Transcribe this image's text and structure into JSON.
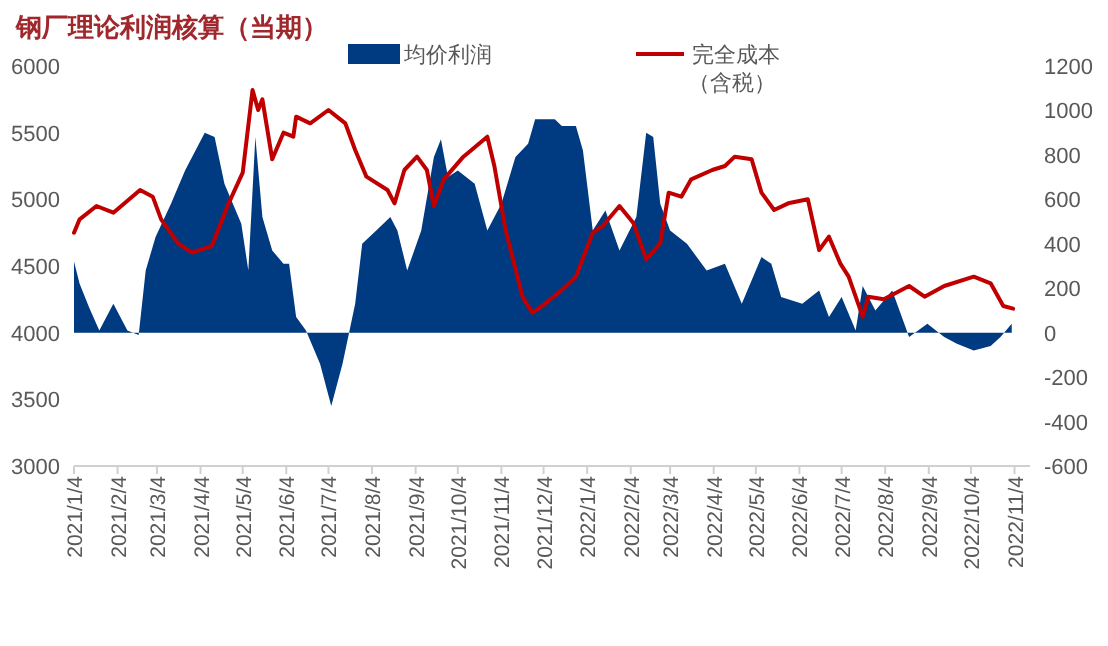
{
  "chart_data": {
    "type": "line",
    "title": "钢厂理论利润核算（当期）",
    "legend": "top",
    "xlim": [
      "2021-01-04",
      "2022-11-15"
    ],
    "xticks": [
      {
        "value": "2021-01-04",
        "label": "2021/1/4"
      },
      {
        "value": "2021-02-04",
        "label": "2021/2/4"
      },
      {
        "value": "2021-03-04",
        "label": "2021/3/4"
      },
      {
        "value": "2021-04-04",
        "label": "2021/4/4"
      },
      {
        "value": "2021-05-04",
        "label": "2021/5/4"
      },
      {
        "value": "2021-06-04",
        "label": "2021/6/4"
      },
      {
        "value": "2021-07-04",
        "label": "2021/7/4"
      },
      {
        "value": "2021-08-04",
        "label": "2021/8/4"
      },
      {
        "value": "2021-09-04",
        "label": "2021/9/4"
      },
      {
        "value": "2021-10-04",
        "label": "2021/10/4"
      },
      {
        "value": "2021-11-04",
        "label": "2021/11/4"
      },
      {
        "value": "2021-12-04",
        "label": "2021/12/4"
      },
      {
        "value": "2022-01-04",
        "label": "2022/1/4"
      },
      {
        "value": "2022-02-04",
        "label": "2022/2/4"
      },
      {
        "value": "2022-03-04",
        "label": "2022/3/4"
      },
      {
        "value": "2022-04-04",
        "label": "2022/4/4"
      },
      {
        "value": "2022-05-04",
        "label": "2022/5/4"
      },
      {
        "value": "2022-06-04",
        "label": "2022/6/4"
      },
      {
        "value": "2022-07-04",
        "label": "2022/7/4"
      },
      {
        "value": "2022-08-04",
        "label": "2022/8/4"
      },
      {
        "value": "2022-09-04",
        "label": "2022/9/4"
      },
      {
        "value": "2022-10-04",
        "label": "2022/10/4"
      },
      {
        "value": "2022-11-04",
        "label": "2022/11/4"
      }
    ],
    "ylim": [
      3000,
      6000
    ],
    "yticks": [
      3000,
      3500,
      4000,
      4500,
      5000,
      5500,
      6000
    ],
    "y2lim": [
      -600,
      1200
    ],
    "y2ticks": [
      -600,
      -400,
      -200,
      0,
      200,
      400,
      600,
      800,
      1000,
      1200
    ],
    "series": [
      {
        "name": "均价利润",
        "type": "area",
        "axis": "y2",
        "color": "#003a80",
        "x": [
          "2021-01-04",
          "2021-01-08",
          "2021-01-15",
          "2021-01-22",
          "2021-02-01",
          "2021-02-11",
          "2021-02-19",
          "2021-02-24",
          "2021-03-03",
          "2021-03-14",
          "2021-03-24",
          "2021-04-07",
          "2021-04-14",
          "2021-04-21",
          "2021-05-03",
          "2021-05-08",
          "2021-05-13",
          "2021-05-18",
          "2021-05-25",
          "2021-06-02",
          "2021-06-06",
          "2021-06-11",
          "2021-06-18",
          "2021-06-28",
          "2021-07-06",
          "2021-07-14",
          "2021-07-19",
          "2021-07-23",
          "2021-07-28",
          "2021-08-07",
          "2021-08-17",
          "2021-08-22",
          "2021-08-29",
          "2021-09-08",
          "2021-09-17",
          "2021-09-22",
          "2021-09-27",
          "2021-10-04",
          "2021-10-16",
          "2021-10-25",
          "2021-11-04",
          "2021-11-14",
          "2021-11-23",
          "2021-11-28",
          "2021-12-12",
          "2021-12-17",
          "2021-12-27",
          "2022-01-01",
          "2022-01-08",
          "2022-01-17",
          "2022-01-27",
          "2022-02-08",
          "2022-02-15",
          "2022-02-20",
          "2022-02-25",
          "2022-03-04",
          "2022-03-16",
          "2022-03-30",
          "2022-04-12",
          "2022-04-24",
          "2022-05-08",
          "2022-05-15",
          "2022-05-22",
          "2022-06-06",
          "2022-06-18",
          "2022-06-25",
          "2022-07-04",
          "2022-07-14",
          "2022-07-19",
          "2022-07-28",
          "2022-08-09",
          "2022-08-21",
          "2022-09-03",
          "2022-09-15",
          "2022-09-24",
          "2022-10-06",
          "2022-10-18",
          "2022-10-25",
          "2022-11-02"
        ],
        "values": [
          320,
          220,
          110,
          10,
          130,
          10,
          -10,
          280,
          430,
          580,
          730,
          900,
          880,
          670,
          490,
          280,
          880,
          520,
          370,
          310,
          310,
          70,
          10,
          -140,
          -330,
          -140,
          10,
          130,
          400,
          460,
          520,
          460,
          280,
          460,
          790,
          870,
          700,
          730,
          670,
          460,
          580,
          790,
          850,
          960,
          960,
          930,
          930,
          820,
          460,
          550,
          370,
          520,
          900,
          880,
          580,
          460,
          400,
          280,
          310,
          130,
          340,
          310,
          160,
          130,
          190,
          70,
          160,
          10,
          210,
          100,
          190,
          -20,
          40,
          -20,
          -50,
          -80,
          -60,
          -20,
          40
        ]
      },
      {
        "name": "完全成本（含税）",
        "axis": "y",
        "color": "#c00000",
        "x": [
          "2021-01-04",
          "2021-01-08",
          "2021-01-20",
          "2021-02-01",
          "2021-02-20",
          "2021-03-01",
          "2021-03-07",
          "2021-03-19",
          "2021-03-29",
          "2021-04-12",
          "2021-04-24",
          "2021-05-04",
          "2021-05-11",
          "2021-05-15",
          "2021-05-18",
          "2021-05-25",
          "2021-06-02",
          "2021-06-09",
          "2021-06-11",
          "2021-06-21",
          "2021-07-04",
          "2021-07-16",
          "2021-07-23",
          "2021-07-31",
          "2021-08-15",
          "2021-08-20",
          "2021-08-27",
          "2021-09-05",
          "2021-09-12",
          "2021-09-17",
          "2021-09-24",
          "2021-10-08",
          "2021-10-25",
          "2021-10-30",
          "2021-11-07",
          "2021-11-19",
          "2021-11-26",
          "2021-12-03",
          "2021-12-17",
          "2021-12-27",
          "2022-01-08",
          "2022-01-15",
          "2022-01-27",
          "2022-02-06",
          "2022-02-15",
          "2022-02-25",
          "2022-03-03",
          "2022-03-12",
          "2022-03-19",
          "2022-04-03",
          "2022-04-12",
          "2022-04-19",
          "2022-05-01",
          "2022-05-08",
          "2022-05-17",
          "2022-05-27",
          "2022-06-10",
          "2022-06-18",
          "2022-06-25",
          "2022-07-03",
          "2022-07-09",
          "2022-07-19",
          "2022-07-23",
          "2022-08-03",
          "2022-08-21",
          "2022-09-01",
          "2022-09-15",
          "2022-10-06",
          "2022-10-18",
          "2022-10-27",
          "2022-11-03"
        ],
        "values": [
          4750,
          4850,
          4950,
          4900,
          5070,
          5020,
          4850,
          4670,
          4600,
          4650,
          4970,
          5200,
          5820,
          5670,
          5750,
          5300,
          5500,
          5470,
          5620,
          5570,
          5670,
          5570,
          5370,
          5170,
          5070,
          4970,
          5220,
          5320,
          5220,
          4950,
          5150,
          5320,
          5470,
          5250,
          4770,
          4270,
          4150,
          4200,
          4320,
          4420,
          4750,
          4800,
          4950,
          4820,
          4550,
          4670,
          5050,
          5020,
          5150,
          5220,
          5250,
          5320,
          5300,
          5050,
          4920,
          4970,
          5000,
          4620,
          4720,
          4520,
          4420,
          4120,
          4270,
          4250,
          4350,
          4270,
          4350,
          4420,
          4370,
          4200,
          4180
        ]
      }
    ]
  }
}
